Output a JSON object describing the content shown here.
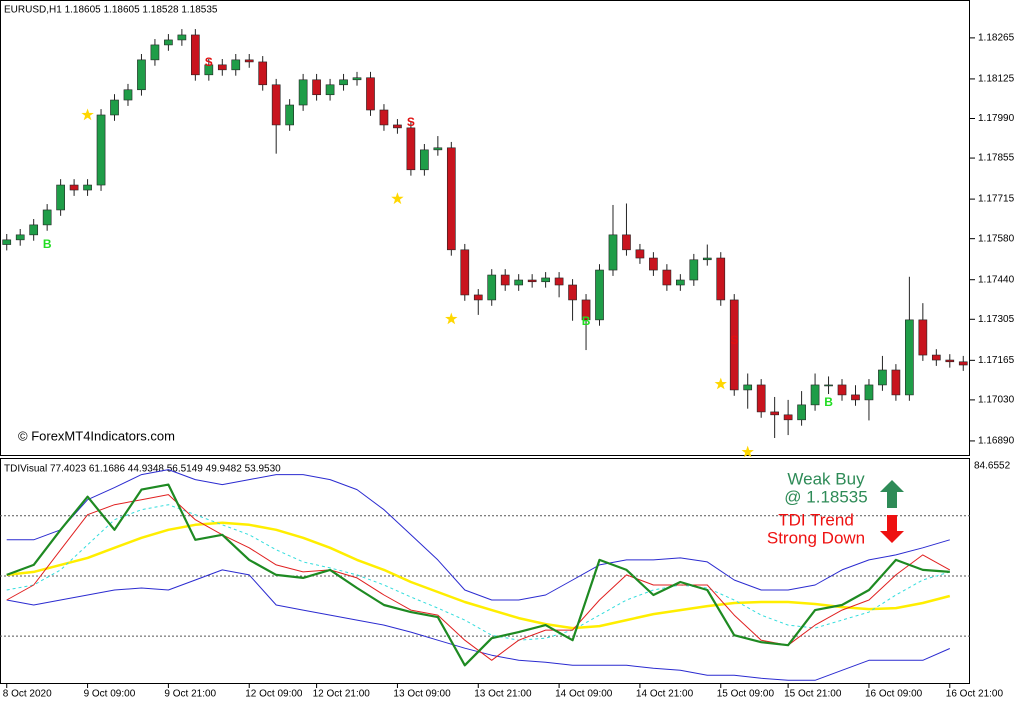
{
  "chart_data": [
    {
      "type": "candlestick",
      "title": "EURUSD,H1  1.18605 1.18605 1.18528 1.18535",
      "annotation": "© ForexMT4Indicators.com",
      "categories": [
        "8 Oct 2020",
        null,
        null,
        null,
        null,
        null,
        "9 Oct 09:00",
        null,
        null,
        null,
        null,
        null,
        "9 Oct 21:00",
        null,
        null,
        null,
        null,
        null,
        "12 Oct 09:00",
        null,
        null,
        null,
        null,
        "12 Oct 21:00",
        null,
        null,
        null,
        null,
        null,
        "13 Oct 09:00",
        null,
        null,
        null,
        null,
        null,
        "13 Oct 21:00",
        null,
        null,
        null,
        null,
        null,
        "14 Oct 09:00",
        null,
        null,
        null,
        null,
        null,
        "14 Oct 21:00",
        null,
        null,
        null,
        null,
        null,
        "15 Oct 09:00",
        null,
        null,
        null,
        null,
        "15 Oct 21:00",
        null,
        null,
        null,
        null,
        null,
        "16 Oct 09:00",
        null,
        null,
        null,
        null,
        null,
        "16 Oct 21:00",
        null
      ],
      "open": [
        1.1756,
        1.17576,
        1.17593,
        1.17627,
        1.17678,
        1.17763,
        1.17746,
        1.17763,
        1.18002,
        1.18053,
        1.18088,
        1.1819,
        1.18241,
        1.18258,
        1.18275,
        1.18139,
        1.18173,
        1.18156,
        1.1819,
        1.18183,
        1.18105,
        1.17968,
        1.18036,
        1.18122,
        1.18071,
        1.18105,
        1.18122,
        1.18129,
        1.18019,
        1.17968,
        1.17958,
        1.17815,
        1.17883,
        1.1789,
        1.17542,
        1.17388,
        1.17371,
        1.17456,
        1.17422,
        1.17439,
        1.17433,
        1.17446,
        1.17422,
        1.17371,
        1.17303,
        1.17473,
        1.17593,
        1.17542,
        1.17514,
        1.17473,
        1.17422,
        1.17439,
        1.17508,
        1.17514,
        1.17371,
        1.17064,
        1.17081,
        1.16989,
        1.16979,
        1.16962,
        1.17013,
        1.17081,
        1.17081,
        1.17047,
        1.1703,
        1.17081,
        1.17132,
        1.17047,
        1.17303,
        1.17183,
        1.17166,
        1.1716
      ],
      "high": [
        1.17596,
        1.17613,
        1.17647,
        1.17698,
        1.17783,
        1.17783,
        1.17783,
        1.18022,
        1.18073,
        1.18108,
        1.1821,
        1.18261,
        1.18278,
        1.18295,
        1.18295,
        1.18193,
        1.18193,
        1.1821,
        1.1821,
        1.18203,
        1.18125,
        1.18056,
        1.18142,
        1.18142,
        1.18125,
        1.18142,
        1.18149,
        1.18149,
        1.18039,
        1.17988,
        1.17978,
        1.17903,
        1.1793,
        1.1791,
        1.17562,
        1.17408,
        1.17476,
        1.17476,
        1.17459,
        1.17459,
        1.17466,
        1.17466,
        1.17442,
        1.17391,
        1.17493,
        1.17695,
        1.177,
        1.17562,
        1.17534,
        1.17493,
        1.17459,
        1.17528,
        1.1756,
        1.17534,
        1.17391,
        1.1712,
        1.17101,
        1.1704,
        1.1703,
        1.1706,
        1.1712,
        1.1711,
        1.17101,
        1.1708,
        1.17101,
        1.1718,
        1.17152,
        1.1745,
        1.1736,
        1.17203,
        1.17186,
        1.1718
      ],
      "low": [
        1.1754,
        1.17556,
        1.17573,
        1.17607,
        1.17658,
        1.17726,
        1.17726,
        1.17743,
        1.17982,
        1.18033,
        1.18068,
        1.1817,
        1.18221,
        1.18238,
        1.18119,
        1.18119,
        1.18136,
        1.18136,
        1.18163,
        1.18085,
        1.1787,
        1.17948,
        1.18016,
        1.18051,
        1.18051,
        1.18085,
        1.18102,
        1.17999,
        1.17948,
        1.17938,
        1.17795,
        1.17795,
        1.17863,
        1.17522,
        1.17368,
        1.1732,
        1.17351,
        1.17402,
        1.17402,
        1.17413,
        1.17413,
        1.1738,
        1.173,
        1.172,
        1.17283,
        1.17453,
        1.17522,
        1.17494,
        1.17453,
        1.17402,
        1.17402,
        1.17419,
        1.17488,
        1.17351,
        1.17044,
        1.17,
        1.16969,
        1.169,
        1.1691,
        1.16942,
        1.16993,
        1.1705,
        1.17027,
        1.1701,
        1.1696,
        1.17061,
        1.17027,
        1.17027,
        1.17163,
        1.17146,
        1.1714,
        1.17129
      ],
      "close": [
        1.17576,
        1.17593,
        1.17627,
        1.17678,
        1.17763,
        1.17746,
        1.17763,
        1.18002,
        1.18053,
        1.18088,
        1.1819,
        1.18241,
        1.18258,
        1.18275,
        1.18139,
        1.18173,
        1.18156,
        1.1819,
        1.18183,
        1.18105,
        1.17968,
        1.18036,
        1.18122,
        1.18071,
        1.18105,
        1.18122,
        1.18129,
        1.18019,
        1.17968,
        1.17958,
        1.17815,
        1.17883,
        1.1789,
        1.17542,
        1.17388,
        1.17371,
        1.17456,
        1.17422,
        1.17439,
        1.17433,
        1.17446,
        1.17422,
        1.17371,
        1.17303,
        1.17473,
        1.17593,
        1.17542,
        1.17514,
        1.17473,
        1.17422,
        1.17439,
        1.17508,
        1.17514,
        1.17371,
        1.17064,
        1.17081,
        1.16989,
        1.16979,
        1.16962,
        1.17013,
        1.17081,
        1.17081,
        1.17047,
        1.1703,
        1.17081,
        1.17132,
        1.17047,
        1.17303,
        1.17183,
        1.17166,
        1.1716,
        1.17149
      ],
      "up_color": "#1f9d48",
      "down_color": "#c8141e",
      "ylim": [
        1.16842,
        1.18384
      ],
      "yticks": [
        1.18265,
        1.18125,
        {
          "value": 1.1799,
          "label": "1.17990"
        },
        1.17855,
        1.17715,
        {
          "value": 1.1758,
          "label": "1.17580"
        },
        {
          "value": 1.1744,
          "label": "1.17440"
        },
        1.17305,
        1.17165,
        {
          "value": 1.1703,
          "label": "1.17030"
        },
        {
          "value": 1.1689,
          "label": "1.16890"
        }
      ],
      "signals": [
        {
          "label": "B",
          "index": 3,
          "price": 1.17559,
          "color": "#22dd22"
        },
        {
          "label": "S",
          "index": 15,
          "price": 1.1818,
          "color": "#e01010"
        },
        {
          "label": "S",
          "index": 30,
          "price": 1.17975,
          "color": "#e01010"
        },
        {
          "label": "B",
          "index": 43,
          "price": 1.17296,
          "color": "#22dd22"
        },
        {
          "label": "S",
          "index": 54,
          "price": 1.17231,
          "color": "#e01010"
        },
        {
          "label": "B",
          "index": 61,
          "price": 1.1702,
          "color": "#22dd22"
        }
      ],
      "stars": {
        "index": [
          6,
          29,
          33,
          53,
          55
        ],
        "price": [
          1.18002,
          1.17716,
          1.17306,
          1.17084,
          1.16852
        ],
        "color": "#ffd700"
      }
    },
    {
      "type": "line",
      "title": "TDIVisual 77.4023 61.1686 44.9348 56.5149 49.9482 53.9530",
      "x": [
        0,
        2,
        4,
        6,
        8,
        10,
        12,
        14,
        16,
        18,
        20,
        22,
        24,
        26,
        28,
        30,
        32,
        34,
        36,
        38,
        40,
        42,
        44,
        46,
        48,
        50,
        52,
        54,
        56,
        58,
        60,
        62,
        64,
        66,
        68,
        70
      ],
      "xlim": [
        -0.5,
        71.5
      ],
      "ylim": [
        18.0,
        84.6552
      ],
      "yticks": [
        84.6552
      ],
      "levels": [
        32,
        50,
        68
      ],
      "series": [
        {
          "color": "#2b2bd0",
          "width": 1,
          "values": [
            60.8,
            60.8,
            63.8,
            72.8,
            76.4,
            80.3,
            81.8,
            78.8,
            77.3,
            78.8,
            80.3,
            80.3,
            78.8,
            75.8,
            69.8,
            62.3,
            54.8,
            45.8,
            42.8,
            42.8,
            44.3,
            48.8,
            53.3,
            54.8,
            54.8,
            55.4,
            54.2,
            48.8,
            45.8,
            45.8,
            47.3,
            51.8,
            54.8,
            56.3,
            58.4,
            60.8
          ]
        },
        {
          "color": "#2b2bd0",
          "width": 1,
          "values": [
            42.8,
            41.3,
            42.8,
            44.3,
            45.8,
            46.4,
            45.8,
            48.8,
            51.8,
            50.3,
            41.3,
            39.8,
            38.3,
            36.8,
            35.3,
            33.2,
            30.8,
            28.4,
            26.3,
            24.8,
            24.2,
            23.3,
            23.3,
            23.3,
            22.4,
            21.8,
            20.3,
            20.3,
            19.4,
            18.8,
            18.8,
            21.8,
            24.8,
            24.8,
            24.8,
            28.3
          ]
        },
        {
          "color": "#ffee00",
          "width": 2.5,
          "values": [
            50.3,
            51.2,
            53.3,
            55.4,
            58.4,
            61.4,
            63.8,
            65.3,
            65.9,
            65.3,
            63.8,
            61.4,
            58.4,
            54.8,
            51.8,
            48.2,
            45.2,
            42.2,
            39.8,
            37.4,
            35.6,
            34.4,
            35.0,
            36.8,
            38.6,
            39.8,
            41.0,
            41.9,
            42.2,
            42.2,
            41.6,
            40.7,
            40.1,
            40.4,
            41.9,
            44.0
          ]
        },
        {
          "color": "#33dddd",
          "width": 1,
          "dash": true,
          "values": [
            45.8,
            47.3,
            51.8,
            59.3,
            66.8,
            69.8,
            71.3,
            68.3,
            65.3,
            62.3,
            57.8,
            54.2,
            52.4,
            50.3,
            47.3,
            43.7,
            40.4,
            36.8,
            32.3,
            30.8,
            31.4,
            33.8,
            38.3,
            42.8,
            45.8,
            47.3,
            46.4,
            42.8,
            38.3,
            35.3,
            34.4,
            36.8,
            39.2,
            44.3,
            48.8,
            51.2
          ]
        },
        {
          "color": "#e02020",
          "width": 1,
          "values": [
            42.8,
            47.3,
            57.8,
            68.3,
            71.3,
            72.8,
            74.3,
            66.8,
            62.3,
            58.4,
            53.3,
            51.2,
            51.8,
            49.4,
            44.3,
            39.8,
            38.3,
            30.8,
            24.8,
            30.8,
            33.8,
            33.8,
            42.8,
            50.3,
            47.3,
            47.3,
            47.3,
            38.3,
            30.8,
            29.3,
            35.3,
            39.8,
            42.8,
            50.3,
            56.3,
            51.8
          ]
        },
        {
          "color": "#1e8a22",
          "width": 2.2,
          "values": [
            50.3,
            53.3,
            63.8,
            73.7,
            63.8,
            75.8,
            77.3,
            60.8,
            62.3,
            54.8,
            50.3,
            49.4,
            51.8,
            46.4,
            41.3,
            39.2,
            37.7,
            23.3,
            31.4,
            33.2,
            35.3,
            30.8,
            54.8,
            51.8,
            44.3,
            48.2,
            45.8,
            32.3,
            30.2,
            29.3,
            39.8,
            41.3,
            45.8,
            54.8,
            51.8,
            51.2
          ]
        }
      ],
      "annotations": [
        {
          "lines": [
            "Weak Buy",
            "@ 1.18535"
          ],
          "color": "#2e8b57",
          "arrow": "up"
        },
        {
          "lines": [
            "TDI Trend",
            "Strong Down"
          ],
          "color": "#ee1111",
          "arrow": "down"
        }
      ]
    }
  ]
}
